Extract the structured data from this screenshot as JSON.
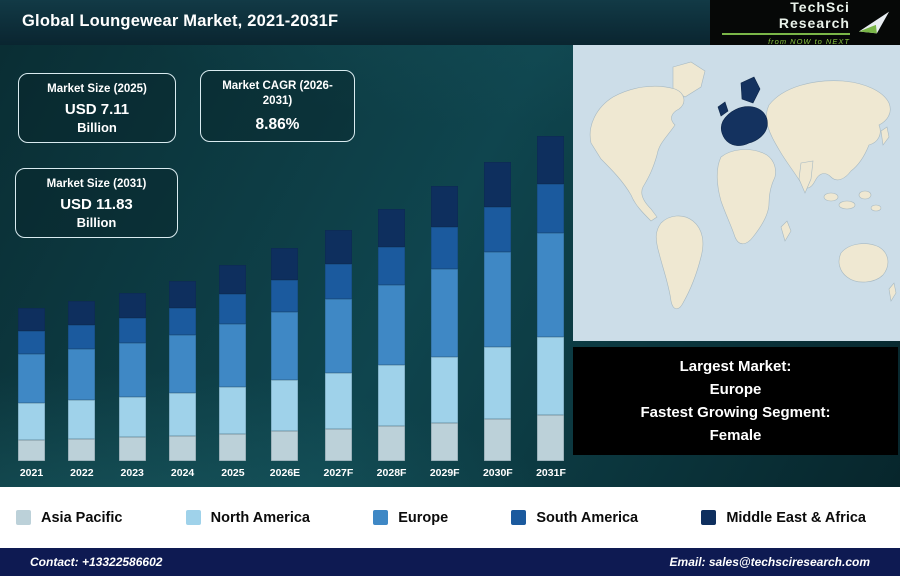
{
  "header": {
    "title": "Global Loungewear Market, 2021-2031F",
    "logo": {
      "brand": "TechSci Research",
      "tagline": "from NOW to NEXT"
    }
  },
  "stats": {
    "size_2025": {
      "label": "Market Size (2025)",
      "value": "USD 7.11",
      "unit": "Billion"
    },
    "cagr": {
      "label": "Market CAGR (2026-2031)",
      "value": "8.86%"
    },
    "size_2031": {
      "label": "Market Size (2031)",
      "value": "USD 11.83",
      "unit": "Billion"
    }
  },
  "chart_data": {
    "type": "bar",
    "stacked": true,
    "title": "Global Loungewear Market, 2021-2031F",
    "categories": [
      "2021",
      "2022",
      "2023",
      "2024",
      "2025",
      "2026E",
      "2027F",
      "2028F",
      "2029F",
      "2030F",
      "2031F"
    ],
    "series": [
      {
        "name": "Asia Pacific",
        "color": "#bcd1d9",
        "values": [
          0.78,
          0.81,
          0.86,
          0.92,
          1.0,
          1.08,
          1.18,
          1.28,
          1.4,
          1.52,
          1.66
        ]
      },
      {
        "name": "North America",
        "color": "#9fd2ea",
        "values": [
          1.33,
          1.4,
          1.47,
          1.57,
          1.71,
          1.86,
          2.02,
          2.2,
          2.4,
          2.61,
          2.84
        ]
      },
      {
        "name": "Europe",
        "color": "#3f88c5",
        "values": [
          1.78,
          1.86,
          1.96,
          2.1,
          2.28,
          2.48,
          2.7,
          2.93,
          3.2,
          3.48,
          3.79
        ]
      },
      {
        "name": "South America",
        "color": "#1b5a9e",
        "values": [
          0.83,
          0.87,
          0.92,
          0.98,
          1.07,
          1.16,
          1.26,
          1.38,
          1.5,
          1.63,
          1.77
        ]
      },
      {
        "name": "Middle East & Africa",
        "color": "#0e2f5e",
        "values": [
          0.83,
          0.87,
          0.92,
          0.98,
          1.07,
          1.16,
          1.26,
          1.38,
          1.5,
          1.63,
          1.77
        ]
      }
    ],
    "totals": [
      5.55,
      5.82,
      6.12,
      6.55,
      7.11,
      7.74,
      8.43,
      9.17,
      9.99,
      10.87,
      11.83
    ],
    "ylim": [
      0,
      12
    ],
    "grid": false,
    "legend_position": "bottom",
    "map_highlight": "Europe",
    "map_highlight_color": "#14325f"
  },
  "callout": {
    "line1": "Largest Market:",
    "line2": "Europe",
    "line3": "Fastest Growing Segment:",
    "line4": "Female"
  },
  "footer": {
    "contact": "Contact: +13322586602",
    "email": "Email: sales@techsciresearch.com"
  }
}
